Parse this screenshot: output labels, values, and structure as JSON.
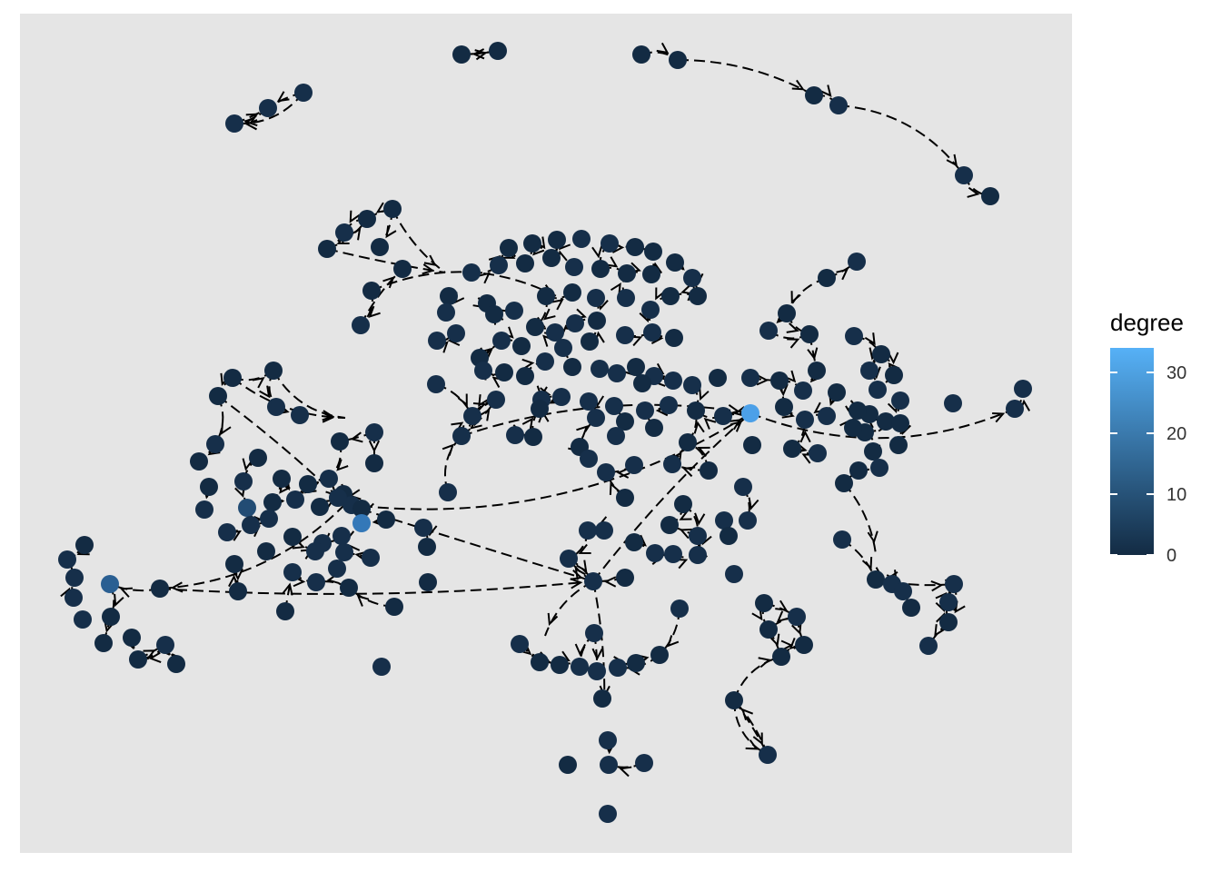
{
  "figure": {
    "type": "network-graph",
    "panel_background": "#E5E5E5",
    "edge_style": "dashed curved arrows",
    "edge_color": "#000000",
    "legend": {
      "title": "degree",
      "placement": "right",
      "ticks": [
        "0",
        "10",
        "20",
        "30"
      ],
      "range": [
        0,
        34
      ],
      "color_low": "#132B43",
      "color_high": "#56B1F7"
    }
  }
}
